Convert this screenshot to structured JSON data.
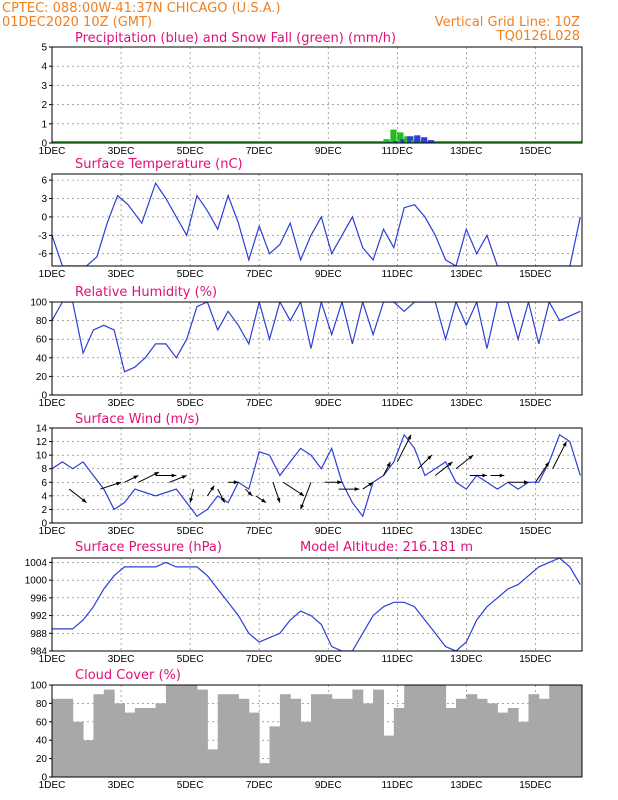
{
  "header": {
    "line1": "CPTEC:   088:00W-41:37N   CHICAGO (U.S.A.)",
    "line2": "01DEC2020 10Z (GMT)",
    "grid_note": "Vertical Grid Line: 10Z",
    "code": "TQ0126L028"
  },
  "colors": {
    "title": "#e0107a",
    "header": "#f08020",
    "line": "#2b3fd6",
    "snow": "#22bb22",
    "cloud": "#a8a8a8"
  },
  "x_ticks": [
    "1DEC",
    "3DEC",
    "5DEC",
    "7DEC",
    "9DEC",
    "11DEC",
    "13DEC",
    "15DEC"
  ],
  "chart_data": [
    {
      "id": "precip",
      "type": "bar",
      "title": "Precipitation (blue) and Snow Fall (green) (mm/h)",
      "ylim": [
        0,
        5
      ],
      "yticks": [
        0,
        1,
        2,
        3,
        4,
        5
      ],
      "x_days": [
        9.2,
        9.4,
        9.6,
        9.8,
        10.0,
        10.2,
        10.4,
        10.6,
        10.8
      ],
      "snow": [
        0.05,
        0.1,
        0.2,
        0.7,
        0.55,
        0.35,
        0.15,
        0.05,
        0.0
      ],
      "rain": [
        0.0,
        0.0,
        0.05,
        0.1,
        0.2,
        0.35,
        0.4,
        0.3,
        0.15
      ],
      "baseline_note": ""
    },
    {
      "id": "temp",
      "type": "line",
      "title": "Surface Temperature (nC)",
      "ylim": [
        -8,
        7
      ],
      "yticks": [
        -6,
        -3,
        0,
        3,
        6
      ],
      "x": [
        0.0,
        0.3,
        0.6,
        1.0,
        1.3,
        1.6,
        1.9,
        2.2,
        2.6,
        3.0,
        3.3,
        3.6,
        3.9,
        4.2,
        4.5,
        4.8,
        5.1,
        5.4,
        5.7,
        6.0,
        6.3,
        6.6,
        6.9,
        7.2,
        7.5,
        7.8,
        8.1,
        8.4,
        8.7,
        9.0,
        9.3,
        9.6,
        9.9,
        10.2,
        10.5,
        10.8,
        11.1,
        11.4,
        11.7,
        12.0,
        12.3,
        12.6,
        12.9,
        13.2,
        13.5,
        13.8,
        14.1,
        14.4,
        14.7,
        15.0,
        15.3
      ],
      "y": [
        -3,
        -8,
        -8,
        -8,
        -6.5,
        -1,
        3.5,
        2,
        -1,
        5.5,
        3,
        0,
        -3,
        3.5,
        1,
        -2,
        3.5,
        -1,
        -7,
        -1.5,
        -6,
        -4.5,
        -1,
        -7,
        -3,
        0,
        -6,
        -3,
        0,
        -5,
        -7,
        -2,
        -5,
        1.5,
        2,
        0,
        -3,
        -7,
        -8,
        -2,
        -6,
        -3,
        -8,
        -8,
        -8,
        -8,
        -8,
        -8,
        -8,
        -8,
        0
      ]
    },
    {
      "id": "rh",
      "type": "line",
      "title": "Relative Humidity (%)",
      "ylim": [
        0,
        100
      ],
      "yticks": [
        0,
        20,
        40,
        60,
        80,
        100
      ],
      "x": [
        0.0,
        0.3,
        0.6,
        0.9,
        1.2,
        1.5,
        1.8,
        2.1,
        2.4,
        2.7,
        3.0,
        3.3,
        3.6,
        3.9,
        4.2,
        4.5,
        4.8,
        5.1,
        5.4,
        5.7,
        6.0,
        6.3,
        6.6,
        6.9,
        7.2,
        7.5,
        7.8,
        8.1,
        8.4,
        8.7,
        9.0,
        9.3,
        9.6,
        9.9,
        10.2,
        10.5,
        10.8,
        11.1,
        11.4,
        11.7,
        12.0,
        12.3,
        12.6,
        12.9,
        13.2,
        13.5,
        13.8,
        14.1,
        14.4,
        14.7,
        15.0,
        15.3
      ],
      "y": [
        80,
        100,
        100,
        45,
        70,
        75,
        70,
        25,
        30,
        40,
        55,
        55,
        40,
        60,
        95,
        100,
        70,
        90,
        75,
        55,
        100,
        60,
        100,
        80,
        100,
        50,
        100,
        65,
        100,
        55,
        100,
        65,
        100,
        100,
        90,
        100,
        100,
        100,
        60,
        100,
        75,
        100,
        50,
        100,
        100,
        60,
        100,
        55,
        100,
        80,
        85,
        90
      ]
    },
    {
      "id": "wind",
      "type": "line",
      "title": "Surface Wind (m/s)",
      "ylim": [
        0,
        14
      ],
      "yticks": [
        0,
        2,
        4,
        6,
        8,
        10,
        12,
        14
      ],
      "x": [
        0.0,
        0.3,
        0.6,
        0.9,
        1.2,
        1.5,
        1.8,
        2.1,
        2.4,
        2.7,
        3.0,
        3.3,
        3.6,
        3.9,
        4.2,
        4.5,
        4.8,
        5.1,
        5.4,
        5.7,
        6.0,
        6.3,
        6.6,
        6.9,
        7.2,
        7.5,
        7.8,
        8.1,
        8.4,
        8.7,
        9.0,
        9.3,
        9.6,
        9.9,
        10.2,
        10.5,
        10.8,
        11.1,
        11.4,
        11.7,
        12.0,
        12.3,
        12.6,
        12.9,
        13.2,
        13.5,
        13.8,
        14.1,
        14.4,
        14.7,
        15.0,
        15.3
      ],
      "y": [
        8,
        9,
        8,
        9,
        7,
        5,
        2,
        3,
        5,
        4.5,
        4,
        4.5,
        5,
        3,
        1,
        2,
        4,
        3,
        6,
        5,
        10.5,
        10,
        7,
        9,
        11,
        10,
        8,
        11,
        6,
        3,
        1,
        6,
        7,
        9,
        13,
        11,
        7,
        8,
        9,
        6,
        5,
        7,
        6,
        5,
        6,
        5,
        6,
        6,
        9,
        13,
        12,
        7
      ],
      "arrows": [
        [
          0.5,
          5,
          1.0,
          3
        ],
        [
          1.4,
          5,
          2.0,
          6
        ],
        [
          2.1,
          6,
          2.5,
          7
        ],
        [
          2.5,
          6,
          3.1,
          7.5
        ],
        [
          3.0,
          7,
          3.6,
          7
        ],
        [
          3.4,
          6,
          3.9,
          7
        ],
        [
          4.1,
          5,
          4.0,
          3
        ],
        [
          4.5,
          4,
          4.7,
          5.5
        ],
        [
          4.8,
          5,
          5.0,
          3
        ],
        [
          5.1,
          6,
          5.4,
          6
        ],
        [
          5.6,
          5,
          5.8,
          4
        ],
        [
          5.9,
          4,
          6.2,
          3
        ],
        [
          6.4,
          6,
          6.6,
          3
        ],
        [
          6.7,
          6,
          7.3,
          4
        ],
        [
          7.5,
          6,
          7.2,
          2
        ],
        [
          7.9,
          6,
          8.4,
          6
        ],
        [
          8.3,
          5,
          8.9,
          5
        ],
        [
          9.0,
          5,
          9.3,
          6
        ],
        [
          9.6,
          7,
          9.8,
          9
        ],
        [
          10.0,
          9,
          10.4,
          13
        ],
        [
          10.6,
          8,
          11.0,
          10
        ],
        [
          11.1,
          7,
          11.6,
          9
        ],
        [
          11.7,
          8,
          12.2,
          10
        ],
        [
          12.1,
          7,
          12.6,
          7
        ],
        [
          12.7,
          7,
          13.1,
          7
        ],
        [
          13.2,
          6,
          13.8,
          6
        ],
        [
          14.0,
          6,
          14.4,
          9
        ],
        [
          14.5,
          8,
          14.9,
          12
        ]
      ]
    },
    {
      "id": "pressure",
      "type": "line",
      "title": "Surface Pressure (hPa)",
      "subtitle": "Model Altitude: 216.181  m",
      "ylim": [
        984,
        1005
      ],
      "yticks": [
        984,
        988,
        992,
        996,
        1000,
        1004
      ],
      "x": [
        0.0,
        0.3,
        0.6,
        0.9,
        1.2,
        1.5,
        1.8,
        2.1,
        2.4,
        2.7,
        3.0,
        3.3,
        3.6,
        3.9,
        4.2,
        4.5,
        4.8,
        5.1,
        5.4,
        5.7,
        6.0,
        6.3,
        6.6,
        6.9,
        7.2,
        7.5,
        7.8,
        8.1,
        8.4,
        8.7,
        9.0,
        9.3,
        9.6,
        9.9,
        10.2,
        10.5,
        10.8,
        11.1,
        11.4,
        11.7,
        12.0,
        12.3,
        12.6,
        12.9,
        13.2,
        13.5,
        13.8,
        14.1,
        14.4,
        14.7,
        15.0,
        15.3
      ],
      "y": [
        989,
        989,
        989,
        991,
        994,
        998,
        1001,
        1003,
        1003,
        1003,
        1003,
        1004,
        1003,
        1003,
        1003,
        1001,
        998,
        995,
        992,
        988,
        986,
        987,
        988,
        991,
        993,
        992,
        990,
        985,
        984,
        984,
        988,
        992,
        994,
        995,
        995,
        994,
        991,
        988,
        985,
        984,
        986,
        991,
        994,
        996,
        998,
        999,
        1001,
        1003,
        1004,
        1005,
        1003,
        999
      ]
    },
    {
      "id": "cloud",
      "type": "bar",
      "title": "Cloud Cover (%)",
      "ylim": [
        0,
        100
      ],
      "yticks": [
        0,
        20,
        40,
        60,
        80,
        100
      ],
      "x": [
        0.0,
        0.3,
        0.6,
        0.9,
        1.2,
        1.5,
        1.8,
        2.1,
        2.4,
        2.7,
        3.0,
        3.3,
        3.6,
        3.9,
        4.2,
        4.5,
        4.8,
        5.1,
        5.4,
        5.7,
        6.0,
        6.3,
        6.6,
        6.9,
        7.2,
        7.5,
        7.8,
        8.1,
        8.4,
        8.7,
        9.0,
        9.3,
        9.6,
        9.9,
        10.2,
        10.5,
        10.8,
        11.1,
        11.4,
        11.7,
        12.0,
        12.3,
        12.6,
        12.9,
        13.2,
        13.5,
        13.8,
        14.1,
        14.4,
        14.7,
        15.0,
        15.3
      ],
      "y": [
        85,
        85,
        60,
        40,
        90,
        95,
        80,
        70,
        75,
        75,
        80,
        100,
        100,
        100,
        95,
        30,
        90,
        90,
        85,
        70,
        15,
        55,
        90,
        85,
        60,
        90,
        90,
        85,
        85,
        95,
        80,
        95,
        45,
        75,
        100,
        100,
        100,
        100,
        75,
        85,
        90,
        85,
        80,
        70,
        75,
        60,
        90,
        85,
        100,
        100,
        100,
        100
      ]
    }
  ]
}
